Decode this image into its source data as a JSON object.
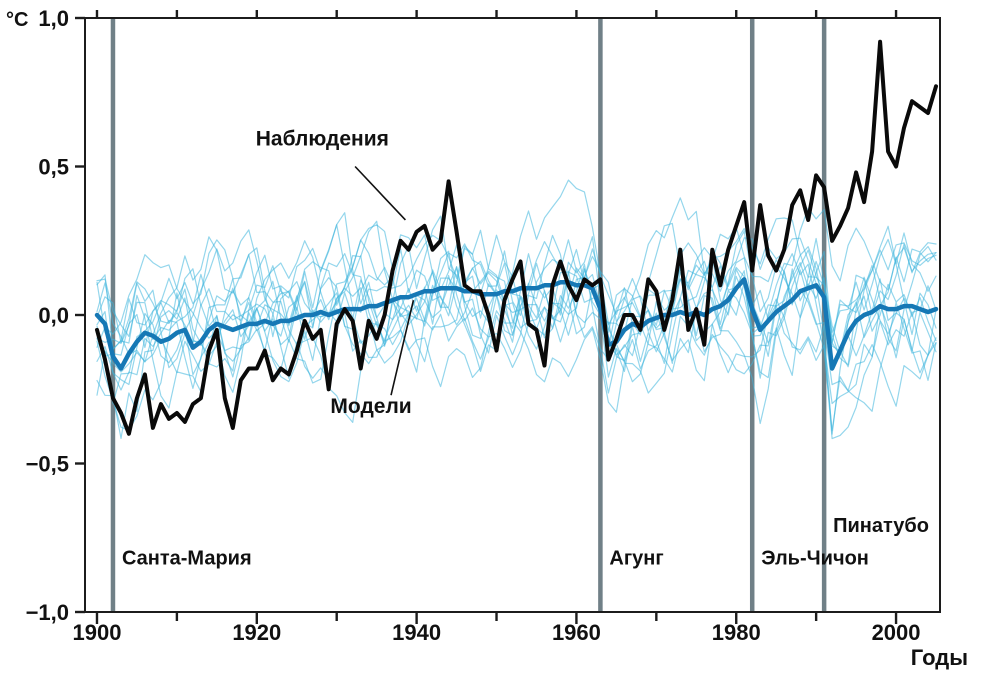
{
  "page": {
    "background": "#ffffff"
  },
  "chart_data": {
    "type": "line",
    "title": "",
    "unit_label": "°C",
    "xlabel": "Годы",
    "x_range": [
      1898.5,
      2005.5
    ],
    "y_range": [
      -1.0,
      1.0
    ],
    "year_start": 1900,
    "year_end": 2005,
    "grid": false,
    "x_ticks": [
      {
        "value": 1900,
        "label": "1900"
      },
      {
        "value": 1920,
        "label": "1920"
      },
      {
        "value": 1940,
        "label": "1940"
      },
      {
        "value": 1960,
        "label": "1960"
      },
      {
        "value": 1980,
        "label": "1980"
      },
      {
        "value": 2000,
        "label": "2000"
      }
    ],
    "x_minor_step": 10,
    "y_ticks": [
      {
        "value": 1.0,
        "label": "1,0"
      },
      {
        "value": 0.5,
        "label": "0,5"
      },
      {
        "value": 0.0,
        "label": "0,0"
      },
      {
        "value": -0.5,
        "label": "−0,5"
      },
      {
        "value": -1.0,
        "label": "−1,0"
      }
    ],
    "series": [
      {
        "name": "Наблюдения",
        "color": "#0a0a0a",
        "width": 4,
        "values": [
          -0.05,
          -0.15,
          -0.28,
          -0.33,
          -0.4,
          -0.28,
          -0.2,
          -0.38,
          -0.3,
          -0.35,
          -0.33,
          -0.36,
          -0.3,
          -0.28,
          -0.12,
          -0.05,
          -0.28,
          -0.38,
          -0.22,
          -0.18,
          -0.18,
          -0.12,
          -0.22,
          -0.18,
          -0.2,
          -0.12,
          -0.02,
          -0.08,
          -0.05,
          -0.25,
          -0.03,
          0.02,
          -0.02,
          -0.18,
          -0.02,
          -0.08,
          0.0,
          0.15,
          0.25,
          0.22,
          0.28,
          0.3,
          0.22,
          0.25,
          0.45,
          0.28,
          0.1,
          0.08,
          0.08,
          0.0,
          -0.12,
          0.05,
          0.12,
          0.18,
          -0.03,
          -0.05,
          -0.17,
          0.1,
          0.18,
          0.1,
          0.05,
          0.12,
          0.1,
          0.12,
          -0.15,
          -0.08,
          0.0,
          0.0,
          -0.05,
          0.12,
          0.08,
          -0.05,
          0.05,
          0.22,
          -0.05,
          0.02,
          -0.1,
          0.22,
          0.1,
          0.22,
          0.3,
          0.38,
          0.15,
          0.37,
          0.2,
          0.15,
          0.22,
          0.37,
          0.42,
          0.32,
          0.47,
          0.43,
          0.25,
          0.3,
          0.36,
          0.48,
          0.38,
          0.55,
          0.92,
          0.55,
          0.5,
          0.63,
          0.72,
          0.7,
          0.68,
          0.77
        ]
      },
      {
        "name": "Модели",
        "color": "#1678b5",
        "width": 4.5,
        "values": [
          0.0,
          -0.03,
          -0.14,
          -0.18,
          -0.13,
          -0.09,
          -0.06,
          -0.07,
          -0.09,
          -0.08,
          -0.06,
          -0.05,
          -0.11,
          -0.09,
          -0.05,
          -0.03,
          -0.04,
          -0.05,
          -0.04,
          -0.03,
          -0.03,
          -0.02,
          -0.03,
          -0.02,
          -0.02,
          -0.01,
          0.0,
          0.0,
          0.01,
          0.0,
          0.01,
          0.02,
          0.02,
          0.02,
          0.03,
          0.03,
          0.04,
          0.05,
          0.06,
          0.06,
          0.07,
          0.08,
          0.08,
          0.09,
          0.09,
          0.09,
          0.08,
          0.08,
          0.07,
          0.07,
          0.07,
          0.08,
          0.08,
          0.09,
          0.09,
          0.09,
          0.1,
          0.1,
          0.11,
          0.11,
          0.1,
          0.1,
          0.09,
          0.02,
          -0.1,
          -0.09,
          -0.05,
          -0.03,
          -0.04,
          -0.02,
          -0.01,
          0.0,
          0.0,
          0.01,
          0.0,
          0.01,
          0.0,
          0.02,
          0.03,
          0.05,
          0.09,
          0.12,
          0.02,
          -0.05,
          -0.02,
          0.01,
          0.03,
          0.05,
          0.08,
          0.09,
          0.1,
          0.06,
          -0.18,
          -0.12,
          -0.06,
          -0.02,
          0.0,
          0.01,
          0.03,
          0.02,
          0.02,
          0.03,
          0.03,
          0.02,
          0.01,
          0.02
        ]
      }
    ],
    "ensemble": {
      "count": 14,
      "color": "#3db5dc",
      "opacity": 0.55,
      "line_width": 1.2,
      "seed": 7,
      "ar": 0.8,
      "noise": 0.26,
      "init": 0.4,
      "basis": "Модели"
    },
    "volcanoes": [
      {
        "year": 1902,
        "label": "Санта-Мария",
        "label_value": -0.84
      },
      {
        "year": 1963,
        "label": "Агунг",
        "label_value": -0.84
      },
      {
        "year": 1982,
        "label": "Эль-Чичон",
        "label_value": -0.84
      },
      {
        "year": 1991,
        "label": "Пинатубо",
        "label_value": -0.73
      }
    ],
    "volcano_line_color": "#61727a",
    "annotations": [
      {
        "text": "Наблюдения",
        "text_year": 1928.2,
        "text_value": 0.57,
        "tail_year": 1932.3,
        "tail_value": 0.5,
        "tip_year": 1938.6,
        "tip_value": 0.32
      },
      {
        "text": "Модели",
        "text_year": 1934.3,
        "text_value": -0.33,
        "tail_year": 1936.8,
        "tail_value": -0.27,
        "tip_year": 1939.6,
        "tip_value": 0.05
      }
    ],
    "text_color": "#111111",
    "frame_color": "#1c1c1c"
  }
}
